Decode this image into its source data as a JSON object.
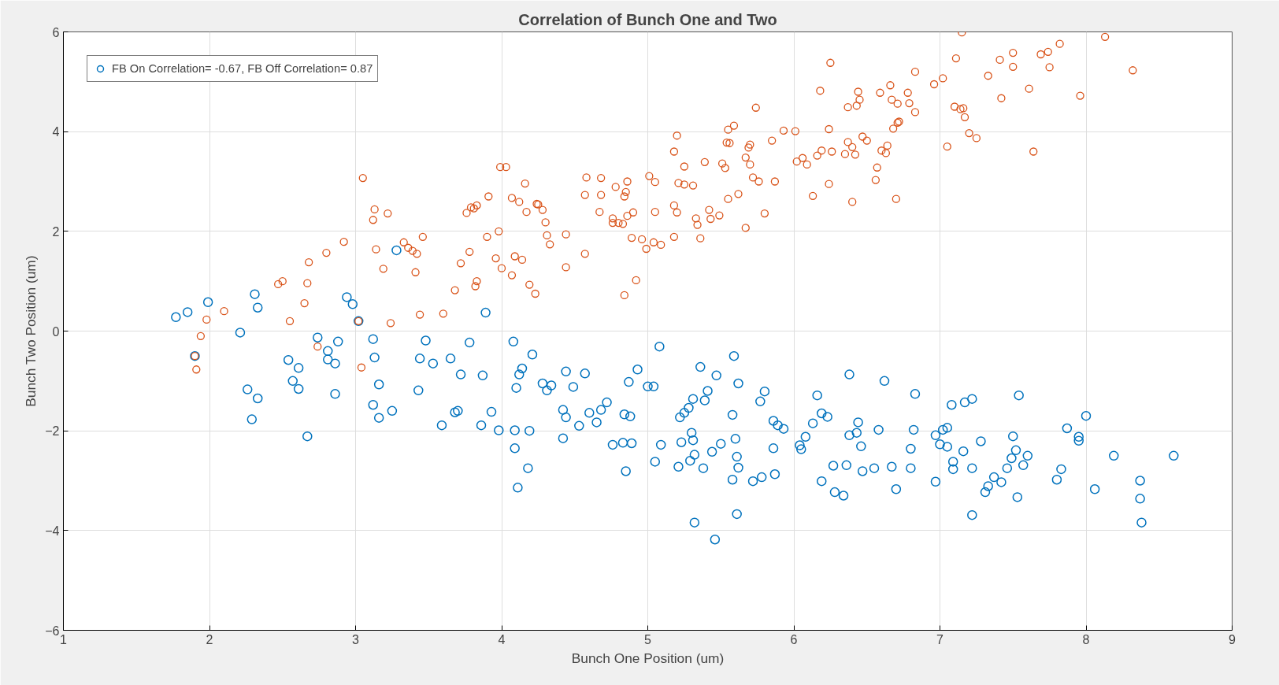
{
  "chart_data": {
    "type": "scatter",
    "title": "Correlation of Bunch One and Two",
    "xlabel": "Bunch One Position (um)",
    "ylabel": "Bunch Two Position (um)",
    "xlim": [
      1,
      9
    ],
    "ylim": [
      -6,
      6
    ],
    "xticks": [
      1,
      2,
      3,
      4,
      5,
      6,
      7,
      8,
      9
    ],
    "yticks": [
      -6,
      -4,
      -2,
      0,
      2,
      4,
      6
    ],
    "grid": true,
    "legend": "top left",
    "marker": "circle",
    "series": [
      {
        "name": "FB On Correlation= -0.67, FB Off Correlation= 0.87",
        "color": "#0072bd",
        "x": [
          1.77,
          1.85,
          1.9,
          1.99,
          2.21,
          2.26,
          2.29,
          2.31,
          2.33,
          2.33,
          2.54,
          2.57,
          2.61,
          2.61,
          2.67,
          2.74,
          2.81,
          2.81,
          2.86,
          2.86,
          2.88,
          2.94,
          2.98,
          3.02,
          3.12,
          3.12,
          3.13,
          3.16,
          3.16,
          3.25,
          3.28,
          3.43,
          3.44,
          3.48,
          3.53,
          3.59,
          3.65,
          3.68,
          3.7,
          3.72,
          3.78,
          3.86,
          3.87,
          3.89,
          3.93,
          3.98,
          4.08,
          4.09,
          4.09,
          4.1,
          4.11,
          4.12,
          4.14,
          4.18,
          4.19,
          4.21,
          4.28,
          4.31,
          4.34,
          4.42,
          4.42,
          4.44,
          4.44,
          4.49,
          4.53,
          4.57,
          4.6,
          4.65,
          4.68,
          4.72,
          4.76,
          4.83,
          4.84,
          4.85,
          4.87,
          4.88,
          4.89,
          4.93,
          5.0,
          5.04,
          5.05,
          5.08,
          5.09,
          5.21,
          5.22,
          5.23,
          5.25,
          5.28,
          5.29,
          5.3,
          5.31,
          5.31,
          5.32,
          5.32,
          5.36,
          5.38,
          5.39,
          5.41,
          5.44,
          5.46,
          5.47,
          5.5,
          5.58,
          5.58,
          5.59,
          5.6,
          5.61,
          5.61,
          5.62,
          5.62,
          5.72,
          5.77,
          5.78,
          5.8,
          5.86,
          5.86,
          5.87,
          5.89,
          5.93,
          6.04,
          6.05,
          6.08,
          6.13,
          6.16,
          6.19,
          6.19,
          6.23,
          6.27,
          6.28,
          6.34,
          6.36,
          6.38,
          6.38,
          6.43,
          6.44,
          6.46,
          6.47,
          6.55,
          6.58,
          6.62,
          6.67,
          6.7,
          6.8,
          6.8,
          6.82,
          6.83,
          6.97,
          6.97,
          7.0,
          7.02,
          7.05,
          7.05,
          7.08,
          7.09,
          7.09,
          7.16,
          7.17,
          7.22,
          7.22,
          7.22,
          7.28,
          7.31,
          7.33,
          7.37,
          7.42,
          7.46,
          7.49,
          7.5,
          7.52,
          7.53,
          7.54,
          7.57,
          7.6,
          7.8,
          7.83,
          7.87,
          7.95,
          7.95,
          8.0,
          8.06,
          8.19,
          8.37,
          8.37,
          8.38,
          8.6
        ],
        "values": [
          0.28,
          0.38,
          -0.5,
          0.58,
          -0.03,
          -1.17,
          -1.77,
          0.74,
          0.47,
          -1.35,
          -0.58,
          -1.0,
          -0.74,
          -1.16,
          -2.11,
          -0.13,
          -0.4,
          -0.57,
          -0.65,
          -1.26,
          -0.21,
          0.68,
          0.54,
          0.2,
          -0.16,
          -1.48,
          -0.53,
          -1.07,
          -1.74,
          -1.6,
          1.62,
          -1.19,
          -0.55,
          -0.19,
          -0.65,
          -1.89,
          -0.55,
          -1.63,
          -1.6,
          -0.87,
          -0.23,
          -1.89,
          -0.89,
          0.37,
          -1.62,
          -1.99,
          -0.21,
          -2.35,
          -1.99,
          -1.14,
          -3.14,
          -0.87,
          -0.75,
          -2.75,
          -2.0,
          -0.47,
          -1.05,
          -1.19,
          -1.09,
          -2.15,
          -1.58,
          -0.81,
          -1.73,
          -1.12,
          -1.9,
          -0.85,
          -1.64,
          -1.83,
          -1.58,
          -1.43,
          -2.28,
          -2.24,
          -1.67,
          -2.81,
          -1.02,
          -1.71,
          -2.25,
          -0.77,
          -1.11,
          -1.11,
          -2.62,
          -0.31,
          -2.28,
          -2.72,
          -1.73,
          -2.23,
          -1.64,
          -1.54,
          -2.6,
          -2.04,
          -1.36,
          -2.19,
          -2.48,
          -3.84,
          -0.72,
          -2.75,
          -1.39,
          -1.2,
          -2.42,
          -4.18,
          -0.89,
          -2.26,
          -1.68,
          -2.98,
          -0.5,
          -2.16,
          -3.67,
          -2.52,
          -2.74,
          -1.05,
          -3.01,
          -1.41,
          -2.93,
          -1.21,
          -1.8,
          -2.35,
          -2.87,
          -1.89,
          -1.96,
          -2.29,
          -2.37,
          -2.12,
          -1.85,
          -1.29,
          -1.65,
          -3.01,
          -1.72,
          -2.7,
          -3.23,
          -3.3,
          -2.69,
          -2.09,
          -0.87,
          -2.04,
          -1.83,
          -2.31,
          -2.81,
          -2.75,
          -1.98,
          -1.0,
          -2.72,
          -3.17,
          -2.36,
          -2.75,
          -1.98,
          -1.26,
          -2.09,
          -3.02,
          -2.27,
          -1.98,
          -1.94,
          -2.32,
          -1.48,
          -2.77,
          -2.62,
          -2.41,
          -1.43,
          -1.36,
          -3.69,
          -2.75,
          -2.21,
          -3.23,
          -3.11,
          -2.93,
          -3.03,
          -2.75,
          -2.55,
          -2.11,
          -2.39,
          -3.33,
          -1.29,
          -2.69,
          -2.5,
          -2.98,
          -2.77,
          -1.95,
          -2.12,
          -2.2,
          -1.7,
          -3.17,
          -2.5,
          -3.0,
          -3.36,
          -3.84,
          -2.5
        ]
      },
      {
        "color": "#d95319",
        "x": [
          1.9,
          1.91,
          1.94,
          1.98,
          2.1,
          2.47,
          2.5,
          2.55,
          2.65,
          2.67,
          2.68,
          2.74,
          2.8,
          2.92,
          3.02,
          3.04,
          3.05,
          3.12,
          3.13,
          3.14,
          3.19,
          3.22,
          3.24,
          3.33,
          3.36,
          3.39,
          3.41,
          3.42,
          3.44,
          3.46,
          3.6,
          3.68,
          3.72,
          3.76,
          3.78,
          3.79,
          3.81,
          3.82,
          3.83,
          3.83,
          3.9,
          3.91,
          3.96,
          3.98,
          3.99,
          4.0,
          4.03,
          4.07,
          4.07,
          4.09,
          4.12,
          4.14,
          4.16,
          4.17,
          4.19,
          4.23,
          4.24,
          4.25,
          4.28,
          4.3,
          4.31,
          4.33,
          4.44,
          4.44,
          4.57,
          4.57,
          4.58,
          4.67,
          4.68,
          4.68,
          4.76,
          4.76,
          4.78,
          4.8,
          4.83,
          4.84,
          4.85,
          4.84,
          4.86,
          4.86,
          4.89,
          4.9,
          4.92,
          4.96,
          4.99,
          5.01,
          5.04,
          5.05,
          5.05,
          5.09,
          5.18,
          5.18,
          5.18,
          5.2,
          5.2,
          5.21,
          5.25,
          5.25,
          5.31,
          5.33,
          5.34,
          5.36,
          5.39,
          5.42,
          5.43,
          5.49,
          5.51,
          5.53,
          5.54,
          5.55,
          5.55,
          5.56,
          5.59,
          5.62,
          5.67,
          5.67,
          5.69,
          5.7,
          5.7,
          5.72,
          5.74,
          5.76,
          5.8,
          5.85,
          5.87,
          5.93,
          6.01,
          6.02,
          6.06,
          6.09,
          6.13,
          6.16,
          6.18,
          6.19,
          6.24,
          6.24,
          6.25,
          6.26,
          6.35,
          6.37,
          6.37,
          6.4,
          6.4,
          6.42,
          6.43,
          6.44,
          6.45,
          6.47,
          6.5,
          6.56,
          6.57,
          6.59,
          6.6,
          6.63,
          6.64,
          6.66,
          6.67,
          6.68,
          6.7,
          6.71,
          6.71,
          6.72,
          6.78,
          6.79,
          6.83,
          6.83,
          6.96,
          7.02,
          7.05,
          7.1,
          7.11,
          7.14,
          7.15,
          7.16,
          7.17,
          7.2,
          7.25,
          7.33,
          7.41,
          7.42,
          7.5,
          7.5,
          7.61,
          7.64,
          7.69,
          7.74,
          7.75,
          7.82,
          7.96,
          8.13,
          8.32
        ],
        "values": [
          -0.5,
          -0.77,
          -0.1,
          0.23,
          0.4,
          0.94,
          1.0,
          0.2,
          0.56,
          0.96,
          1.38,
          -0.31,
          1.57,
          1.79,
          0.2,
          -0.73,
          3.07,
          2.23,
          2.44,
          1.64,
          1.25,
          2.36,
          0.16,
          1.78,
          1.67,
          1.61,
          1.18,
          1.55,
          0.33,
          1.89,
          0.35,
          0.82,
          1.36,
          2.37,
          1.59,
          2.48,
          2.46,
          0.9,
          1.0,
          2.52,
          1.89,
          2.7,
          1.46,
          2.0,
          3.29,
          1.26,
          3.29,
          1.12,
          2.67,
          1.5,
          2.59,
          1.43,
          2.96,
          2.39,
          0.93,
          0.75,
          2.55,
          2.54,
          2.43,
          2.18,
          1.92,
          1.74,
          1.94,
          1.28,
          1.55,
          2.73,
          3.08,
          2.39,
          2.73,
          3.07,
          2.26,
          2.17,
          2.89,
          2.17,
          2.15,
          2.7,
          2.79,
          0.72,
          3.0,
          2.31,
          1.87,
          2.38,
          1.02,
          1.84,
          1.65,
          3.11,
          1.78,
          2.99,
          2.39,
          1.73,
          1.89,
          3.6,
          2.52,
          3.92,
          2.38,
          2.97,
          3.3,
          2.94,
          2.92,
          2.26,
          2.13,
          1.86,
          3.39,
          2.43,
          2.25,
          2.32,
          3.36,
          3.27,
          3.78,
          4.04,
          2.65,
          3.77,
          4.12,
          2.75,
          2.07,
          3.48,
          3.68,
          3.74,
          3.34,
          3.08,
          4.48,
          3.0,
          2.36,
          3.82,
          3.0,
          4.02,
          4.01,
          3.4,
          3.47,
          3.34,
          2.71,
          3.52,
          4.82,
          3.62,
          2.95,
          4.05,
          5.38,
          3.6,
          3.55,
          4.49,
          3.79,
          2.59,
          3.69,
          3.54,
          4.52,
          4.8,
          4.64,
          3.9,
          3.82,
          3.03,
          3.28,
          4.78,
          3.62,
          3.57,
          3.72,
          4.93,
          4.64,
          4.06,
          2.65,
          4.56,
          4.18,
          4.2,
          4.78,
          4.57,
          5.2,
          4.39,
          4.95,
          5.07,
          3.7,
          4.5,
          5.47,
          4.45,
          5.99,
          4.47,
          4.29,
          3.97,
          3.87,
          5.12,
          5.44,
          4.67,
          5.58,
          5.3,
          4.86,
          3.6,
          5.55,
          5.6,
          5.29,
          5.76,
          4.72,
          5.9,
          5.23
        ]
      }
    ]
  }
}
